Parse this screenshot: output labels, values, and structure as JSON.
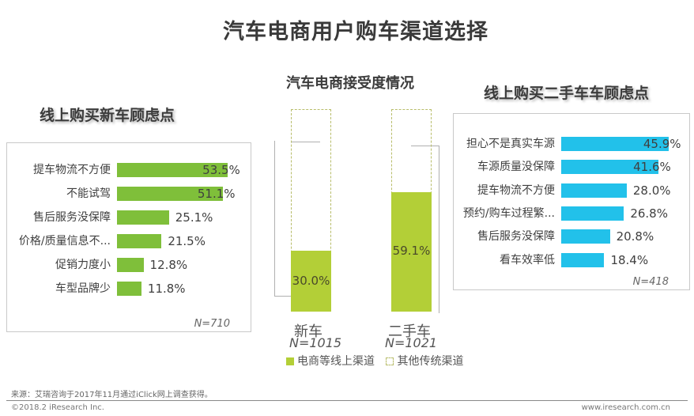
{
  "title": "汽车电商用户购车渠道选择",
  "left_panel": {
    "subtitle": "线上购买新车顾虑点",
    "n_label": "N=710",
    "bar_color": "#7fbf3a",
    "items": [
      {
        "label": "提车物流不方便",
        "value": 53.5,
        "text": "53.5%"
      },
      {
        "label": "不能试驾",
        "value": 51.1,
        "text": "51.1%"
      },
      {
        "label": "售后服务没保障",
        "value": 25.1,
        "text": "25.1%"
      },
      {
        "label": "价格/质量信息不...",
        "value": 21.5,
        "text": "21.5%"
      },
      {
        "label": "促销力度小",
        "value": 12.8,
        "text": "12.8%"
      },
      {
        "label": "车型品牌少",
        "value": 11.8,
        "text": "11.8%"
      }
    ]
  },
  "middle_panel": {
    "subtitle": "汽车电商接受度情况",
    "fill_color": "#b3cf37",
    "columns": [
      {
        "category": "新车",
        "n_label": "N=1015",
        "online": 30.0,
        "text": "30.0%"
      },
      {
        "category": "二手车",
        "n_label": "N=1021",
        "online": 59.1,
        "text": "59.1%"
      }
    ],
    "legend": [
      {
        "label": "电商等线上渠道",
        "style": "solid",
        "color": "#b3cf37"
      },
      {
        "label": "其他传统渠道",
        "style": "dashed",
        "color": "#b8bd6a"
      }
    ]
  },
  "right_panel": {
    "subtitle": "线上购买二手车车顾虑点",
    "n_label": "N=418",
    "bar_color": "#22c1ea",
    "items": [
      {
        "label": "担心不是真实车源",
        "value": 45.9,
        "text": "45.9%"
      },
      {
        "label": "车源质量没保障",
        "value": 41.6,
        "text": "41.6%"
      },
      {
        "label": "提车物流不方便",
        "value": 28.0,
        "text": "28.0%"
      },
      {
        "label": "预约/购车过程繁...",
        "value": 26.8,
        "text": "26.8%"
      },
      {
        "label": "售后服务没保障",
        "value": 20.8,
        "text": "20.8%"
      },
      {
        "label": "看车效率低",
        "value": 18.4,
        "text": "18.4%"
      }
    ]
  },
  "source": "来源：艾瑞咨询于2017年11月通过iClick网上调查获得。",
  "footer": {
    "copyright": "©2018.2 iResearch Inc.",
    "website": "www.iresearch.com.cn"
  },
  "chart_data": [
    {
      "type": "bar",
      "orientation": "horizontal",
      "title": "线上购买新车顾虑点",
      "categories": [
        "提车物流不方便",
        "不能试驾",
        "售后服务没保障",
        "价格/质量信息不...",
        "促销力度小",
        "车型品牌少"
      ],
      "values": [
        53.5,
        51.1,
        25.1,
        21.5,
        12.8,
        11.8
      ],
      "unit": "%",
      "annotation": "N=710",
      "color": "#7fbf3a",
      "grid": false
    },
    {
      "type": "bar",
      "orientation": "vertical",
      "stacked": true,
      "title": "汽车电商接受度情况",
      "categories": [
        "新车",
        "二手车"
      ],
      "series": [
        {
          "name": "电商等线上渠道",
          "values": [
            30.0,
            59.1
          ]
        },
        {
          "name": "其他传统渠道",
          "values": [
            70.0,
            40.9
          ]
        }
      ],
      "annotations": [
        "N=1015",
        "N=1021"
      ],
      "unit": "%",
      "legend_position": "bottom",
      "ylim": [
        0,
        100
      ],
      "grid": false
    },
    {
      "type": "bar",
      "orientation": "horizontal",
      "title": "线上购买二手车车顾虑点",
      "categories": [
        "担心不是真实车源",
        "车源质量没保障",
        "提车物流不方便",
        "预约/购车过程繁...",
        "售后服务没保障",
        "看车效率低"
      ],
      "values": [
        45.9,
        41.6,
        28.0,
        26.8,
        20.8,
        18.4
      ],
      "unit": "%",
      "annotation": "N=418",
      "color": "#22c1ea",
      "grid": false
    }
  ]
}
